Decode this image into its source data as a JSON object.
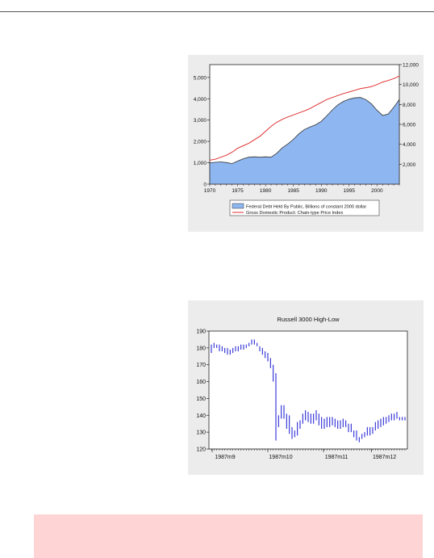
{
  "colors": {
    "area_fill": "#8eb6f0",
    "area_edge": "#333333",
    "red_line": "#e03030",
    "hilo": "#2a2ad8",
    "note_bg": "#ffd4d4"
  },
  "chart_data": [
    {
      "type": "area",
      "title": "",
      "x_ticks": [
        "1970",
        "1975",
        "1980",
        "1985",
        "1990",
        "1995",
        "2000"
      ],
      "x_range": [
        1970,
        2004
      ],
      "left_axis": {
        "ticks": [
          "0",
          "1,000",
          "2,000",
          "3,000",
          "4,000",
          "5,000"
        ],
        "range": [
          0,
          5600
        ]
      },
      "right_axis": {
        "ticks": [
          "2,000",
          "4,000",
          "6,000",
          "8,000",
          "10,000",
          "12,000"
        ],
        "range": [
          0,
          12000
        ]
      },
      "legend_placement": "bottom",
      "series": [
        {
          "name": "Federal Debt Held By Public, Billions of constant 2000 dollar",
          "type": "area",
          "axis": "left",
          "x": [
            1970,
            1971,
            1972,
            1973,
            1974,
            1975,
            1976,
            1977,
            1978,
            1979,
            1980,
            1981,
            1982,
            1983,
            1984,
            1985,
            1986,
            1987,
            1988,
            1989,
            1990,
            1991,
            1992,
            1993,
            1994,
            1995,
            1996,
            1997,
            1998,
            1999,
            2000,
            2001,
            2002,
            2003,
            2004
          ],
          "y": [
            1000,
            1020,
            1040,
            1010,
            960,
            1080,
            1190,
            1260,
            1280,
            1260,
            1280,
            1260,
            1440,
            1700,
            1880,
            2100,
            2360,
            2560,
            2680,
            2780,
            2940,
            3200,
            3480,
            3720,
            3880,
            3980,
            4040,
            4060,
            3960,
            3760,
            3460,
            3220,
            3280,
            3600,
            3960
          ]
        },
        {
          "name": "Gross Domestic Product: Chain-type Price Index",
          "type": "line",
          "axis": "right",
          "x": [
            1970,
            1971,
            1972,
            1973,
            1974,
            1975,
            1976,
            1977,
            1978,
            1979,
            1980,
            1981,
            1982,
            1983,
            1984,
            1985,
            1986,
            1987,
            1988,
            1989,
            1990,
            1991,
            1992,
            1993,
            1994,
            1995,
            1996,
            1997,
            1998,
            1999,
            2000,
            2001,
            2002,
            2003,
            2004
          ],
          "y": [
            2400,
            2500,
            2700,
            2900,
            3200,
            3600,
            3850,
            4100,
            4450,
            4800,
            5300,
            5800,
            6200,
            6500,
            6750,
            6950,
            7150,
            7350,
            7600,
            7900,
            8200,
            8500,
            8700,
            8900,
            9100,
            9250,
            9420,
            9580,
            9680,
            9790,
            10000,
            10250,
            10400,
            10600,
            10850
          ]
        }
      ]
    },
    {
      "type": "hilo",
      "title": "Russell 3000 High-Low",
      "x_ticks": [
        "1987m9",
        "1987m10",
        "1987m11",
        "1987m12"
      ],
      "y_ticks": [
        "120",
        "130",
        "140",
        "150",
        "160",
        "170",
        "180",
        "190"
      ],
      "ylim": [
        120,
        190
      ],
      "grid": false,
      "high": [
        182,
        183,
        182,
        182,
        181,
        180,
        180,
        179,
        180,
        181,
        181,
        182,
        182,
        182,
        183,
        185,
        185,
        183,
        181,
        180,
        178,
        177,
        174,
        170,
        165,
        140,
        146,
        146,
        141,
        140,
        133,
        131,
        136,
        137,
        141,
        143,
        142,
        141,
        141,
        143,
        141,
        139,
        138,
        139,
        139,
        139,
        138,
        137,
        137,
        138,
        137,
        135,
        135,
        131,
        131,
        127,
        129,
        130,
        133,
        133,
        133,
        136,
        137,
        138,
        139,
        139,
        140,
        141,
        141,
        142,
        139,
        139,
        139
      ],
      "low": [
        177,
        180,
        180,
        178,
        178,
        177,
        176,
        176,
        177,
        178,
        178,
        179,
        179,
        180,
        181,
        182,
        182,
        181,
        178,
        176,
        174,
        172,
        168,
        160,
        125,
        133,
        138,
        138,
        132,
        129,
        126,
        127,
        128,
        132,
        135,
        137,
        136,
        135,
        135,
        137,
        134,
        132,
        132,
        133,
        133,
        134,
        133,
        132,
        132,
        133,
        133,
        130,
        130,
        127,
        125,
        124,
        126,
        127,
        128,
        128,
        129,
        131,
        132,
        133,
        134,
        135,
        136,
        137,
        137,
        138,
        137,
        137,
        137
      ]
    }
  ]
}
